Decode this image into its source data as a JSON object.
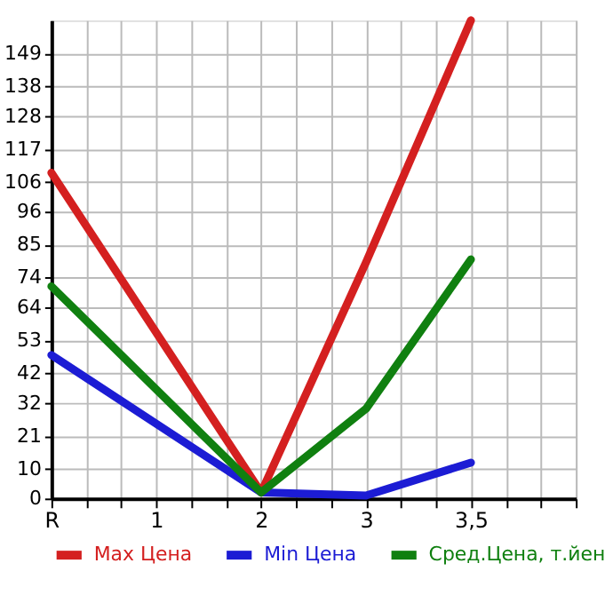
{
  "chart_data": {
    "type": "line",
    "categories": [
      "R",
      "1",
      "2",
      "3",
      "3,5",
      null
    ],
    "series": [
      {
        "name": "Max Цена",
        "color": "#d42020",
        "values": [
          109,
          null,
          2,
          79,
          160,
          null
        ]
      },
      {
        "name": "Min Цена",
        "color": "#1c1cd4",
        "values": [
          48,
          null,
          2,
          1,
          12,
          null
        ]
      },
      {
        "name": "Сред.Цена, т.йен",
        "color": "#108010",
        "values": [
          71,
          null,
          2,
          30,
          80,
          null
        ]
      }
    ],
    "ylim": [
      0,
      160
    ],
    "yticks": [
      0,
      10,
      21,
      32,
      42,
      53,
      64,
      74,
      85,
      96,
      106,
      117,
      128,
      138,
      149
    ],
    "grid": true,
    "legend": "bottom",
    "marker": "none",
    "line_style": "solid"
  }
}
